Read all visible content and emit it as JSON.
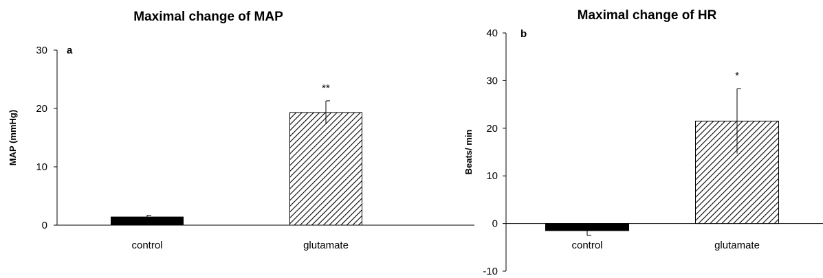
{
  "chart_data": [
    {
      "type": "bar",
      "title": "Maximal change of MAP",
      "panel_label": "a",
      "ylabel": "MAP (mmHg)",
      "xlabel": "",
      "categories": [
        "control",
        "glutamate"
      ],
      "values": [
        1.4,
        19.3
      ],
      "errors": [
        0.3,
        2.0
      ],
      "significance": [
        "",
        "**"
      ],
      "ylim": [
        0,
        30
      ],
      "yticks": [
        "0",
        "10",
        "20",
        "30"
      ],
      "bar_fill": [
        "solid",
        "hatched"
      ],
      "bar_color": "#000000",
      "grid": false
    },
    {
      "type": "bar",
      "title": "Maximal change  of HR",
      "panel_label": "b",
      "ylabel": "Beats/ min",
      "xlabel": "",
      "categories": [
        "control",
        "glutamate"
      ],
      "values": [
        -1.5,
        21.5
      ],
      "errors": [
        1.0,
        6.8
      ],
      "significance": [
        "",
        "*"
      ],
      "ylim": [
        -10,
        40
      ],
      "yticks": [
        "-10",
        "0",
        "10",
        "20",
        "30",
        "40"
      ],
      "bar_fill": [
        "solid",
        "hatched"
      ],
      "bar_color": "#000000",
      "grid": false
    }
  ]
}
